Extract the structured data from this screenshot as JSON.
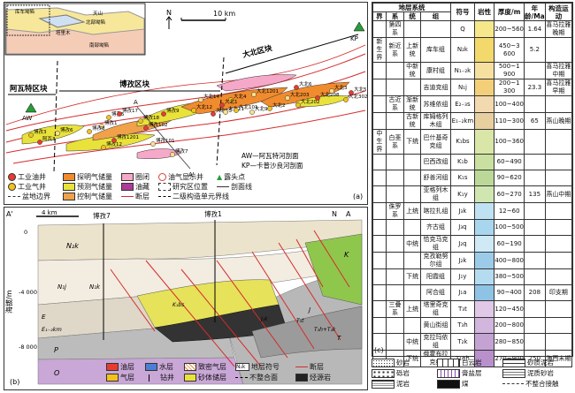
{
  "panel_a": {
    "label": "(a)",
    "north": "N",
    "scale": "10 km",
    "blocks": {
      "awat": "阿瓦特区块",
      "boz": "博孜区块",
      "dabei": "大北区块"
    },
    "profile_a": "A",
    "profile_a2": "A'",
    "kp": "KP",
    "aw": "AW",
    "section_note_aw": "AW—阿瓦特河剖面",
    "section_note_kp": "KP—卡普沙良河剖面",
    "inset": {
      "tianshan": "天山",
      "tarim": "塔里木",
      "north_depression": "北部坳陷",
      "south_depression": "南部坳陷",
      "kuqa": "库车坳陷"
    },
    "wells": [
      "博孜3",
      "阿瓦3",
      "博孜1",
      "博孜12",
      "博孜102",
      "博孜101",
      "博孜18",
      "博孜9",
      "博孜7",
      "博孜5",
      "博孜17",
      "博孜6",
      "博孜8",
      "博孜1201",
      "大北14",
      "大北4",
      "大北13",
      "大北11",
      "大北12",
      "大北1",
      "大北9",
      "大北2",
      "大北6",
      "大北203",
      "大北202",
      "大北208",
      "大北3",
      "大北302",
      "大北5",
      "大北1201",
      "大北101"
    ],
    "legend": {
      "gas_oil_well": "工业油井",
      "explore_gas": "探明气储量",
      "trap": "圈闭",
      "oil_gas_show": "油气显示井",
      "outcrop": "露头点",
      "gas_well": "工业气井",
      "predict_gas": "预测气储量",
      "oil_trap": "油藏",
      "study_area": "研究区位置",
      "section_line": "剖面线",
      "basin_boundary": "盆地边界",
      "control_gas": "控制气储量",
      "fault": "断层",
      "unit_boundary": "二级构造单元界线"
    }
  },
  "panel_b": {
    "label": "(b)",
    "a_left": "A'",
    "a_right": "A",
    "north": "N",
    "scale": "4 km",
    "well_left": "博孜7",
    "well_right": "博孜1",
    "y_axis_label": "海拔/m",
    "y_ticks": [
      "0",
      "-4 000",
      "-8 000"
    ],
    "units": {
      "n2k": "N₂k",
      "n1j": "N₁j",
      "n1k": "N₁k",
      "e": "E",
      "e1k": "E₁₋₂km",
      "p": "P",
      "o": "O",
      "k": "K",
      "j": "J",
      "t": "T",
      "k1bs": "K₁bs",
      "t1j": "T₃t",
      "j2k": "J₁k",
      "t3h": "T₃h+T₂k"
    },
    "legend": {
      "oil": "油层",
      "water": "水层",
      "tight": "致密气层",
      "strat_symbol": "地层符号",
      "fault": "断层",
      "gas": "气层",
      "drill": "钻井",
      "sand_reservoir": "砂体储层",
      "unconformity": "不整合面",
      "hydrocarbon_rock": "烃源岩",
      "strat_sym_sample": "N₂k"
    }
  },
  "panel_c": {
    "label": "(c)",
    "header": {
      "system": "地层系统",
      "jie": "界",
      "xi": "系",
      "tong": "统",
      "zu": "组",
      "symbol": "符号",
      "lithology": "岩性",
      "thickness": "厚度/m",
      "age": "年龄/Ma",
      "tectonic": "构造运动"
    },
    "rows": [
      {
        "jie": "",
        "xi": "第四系",
        "tong": "",
        "zu": "",
        "sym": "Q",
        "thick": "200~560",
        "age": "1.64",
        "tect": "喜马拉雅晚期"
      },
      {
        "jie": "新生界",
        "xi": "新近系",
        "tong": "上新统",
        "zu": "库车组",
        "sym": "N₂k",
        "thick": "450~3 600",
        "age": "5.2",
        "tect": ""
      },
      {
        "jie": "",
        "xi": "",
        "tong": "中新统",
        "zu": "康村组",
        "sym": "N₁₋₂k",
        "thick": "500~1 900",
        "age": "",
        "tect": "喜马拉雅中期"
      },
      {
        "jie": "",
        "xi": "",
        "tong": "",
        "zu": "吉迪克组",
        "sym": "N₁j",
        "thick": "200~1 300",
        "age": "23.3",
        "tect": "喜马拉雅早期"
      },
      {
        "jie": "",
        "xi": "古近系",
        "tong": "渐新统",
        "zu": "苏维依组",
        "sym": "E₂₋₃s",
        "thick": "100~400",
        "age": "",
        "tect": ""
      },
      {
        "jie": "",
        "xi": "",
        "tong": "古新统",
        "zu": "库姆格列木组",
        "sym": "E₁₋₂km",
        "thick": "110~300",
        "age": "65",
        "tect": "燕山晚期"
      },
      {
        "jie": "中生界",
        "xi": "白垩系",
        "tong": "下统",
        "zu": "巴什基奇克组",
        "sym": "K₁bs",
        "thick": "100~360",
        "age": "",
        "tect": ""
      },
      {
        "jie": "",
        "xi": "",
        "tong": "",
        "zu": "巴西改组",
        "sym": "K₁b",
        "thick": "60~490",
        "age": "",
        "tect": ""
      },
      {
        "jie": "",
        "xi": "",
        "tong": "",
        "zu": "舒善河组",
        "sym": "K₁s",
        "thick": "90~620",
        "age": "",
        "tect": ""
      },
      {
        "jie": "",
        "xi": "",
        "tong": "",
        "zu": "亚格列木组",
        "sym": "K₁y",
        "thick": "60~270",
        "age": "135",
        "tect": "燕山中期"
      },
      {
        "jie": "",
        "xi": "侏罗系",
        "tong": "上统",
        "zu": "喀拉扎组",
        "sym": "J₃k",
        "thick": "12~60",
        "age": "",
        "tect": ""
      },
      {
        "jie": "",
        "xi": "",
        "tong": "",
        "zu": "齐古组",
        "sym": "J₃q",
        "thick": "100~500",
        "age": "",
        "tect": ""
      },
      {
        "jie": "",
        "xi": "",
        "tong": "中统",
        "zu": "恰克马克组",
        "sym": "J₂q",
        "thick": "60~190",
        "age": "",
        "tect": ""
      },
      {
        "jie": "",
        "xi": "",
        "tong": "",
        "zu": "克孜勒努尔组",
        "sym": "J₂k",
        "thick": "400~800",
        "age": "",
        "tect": ""
      },
      {
        "jie": "",
        "xi": "",
        "tong": "下统",
        "zu": "阳霞组",
        "sym": "J₁y",
        "thick": "380~500",
        "age": "",
        "tect": ""
      },
      {
        "jie": "",
        "xi": "",
        "tong": "",
        "zu": "阿合组",
        "sym": "J₁a",
        "thick": "90~400",
        "age": "208",
        "tect": "印支期"
      },
      {
        "jie": "",
        "xi": "三叠系",
        "tong": "上统",
        "zu": "塔里奇克组",
        "sym": "T₃t",
        "thick": "120~450",
        "age": "",
        "tect": ""
      },
      {
        "jie": "",
        "xi": "",
        "tong": "",
        "zu": "黄山街组",
        "sym": "T₃h",
        "thick": "200~800",
        "age": "",
        "tect": ""
      },
      {
        "jie": "",
        "xi": "",
        "tong": "中统",
        "zu": "克拉玛依组",
        "sym": "T₂k",
        "thick": "280~850",
        "age": "",
        "tect": ""
      },
      {
        "jie": "",
        "xi": "",
        "tong": "下统",
        "zu": "俄霍布拉克组",
        "sym": "T₁eh",
        "thick": "270~900",
        "age": "250",
        "tect": "海西末期"
      }
    ],
    "lith_legend": {
      "sandstone": "砂岩",
      "dolomite": "白云岩",
      "sandy_mudstone": "砂质泥岩",
      "conglomerate": "砾岩",
      "gypsum": "膏盐层",
      "muddy_sandstone": "泥质砂岩",
      "mudstone": "泥岩",
      "coal": "煤",
      "unconformity": "不整合接触"
    }
  },
  "colors": {
    "gas": "#f2c21b",
    "oil": "#e63c2f",
    "water": "#4a7fd4",
    "fault": "#d42c2c",
    "reservoir": "#e9e23a",
    "control": "#f0a14a",
    "explore": "#f08b2e",
    "trap": "#f6a8c8"
  }
}
